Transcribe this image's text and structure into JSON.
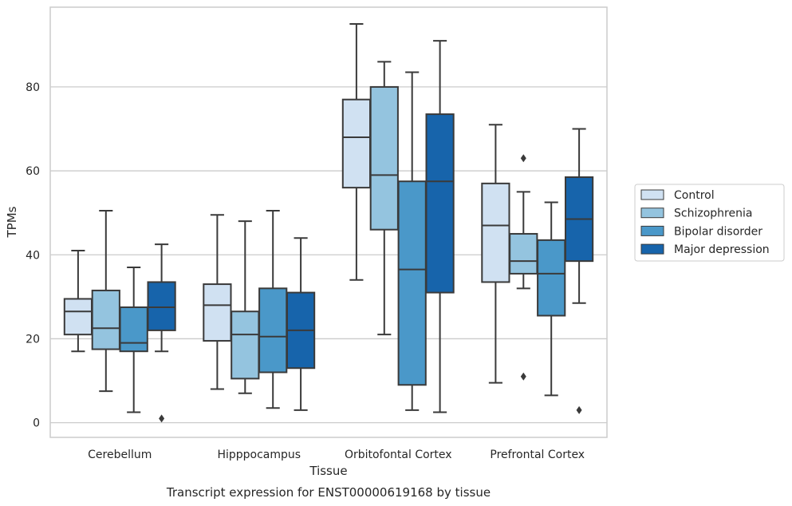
{
  "chart_data": {
    "type": "box",
    "caption": "Transcript expression for ENST00000619168 by tissue",
    "xlabel": "Tissue",
    "ylabel": "TPMs",
    "ylim": [
      -3.5,
      99
    ],
    "yticks": [
      0,
      20,
      40,
      60,
      80
    ],
    "grid": true,
    "legend_position": "right",
    "categories": [
      "Cerebellum",
      "Hipppocampus",
      "Orbitofontal Cortex",
      "Prefrontal Cortex"
    ],
    "series": [
      {
        "name": "Control",
        "color": "#d0e1f2",
        "boxes": [
          {
            "whislo": 17,
            "q1": 21,
            "med": 26.5,
            "q3": 29.5,
            "whishi": 41,
            "fliers": []
          },
          {
            "whislo": 8,
            "q1": 19.5,
            "med": 28,
            "q3": 33,
            "whishi": 49.5,
            "fliers": []
          },
          {
            "whislo": 34,
            "q1": 56,
            "med": 68,
            "q3": 77,
            "whishi": 95,
            "fliers": []
          },
          {
            "whislo": 9.5,
            "q1": 33.5,
            "med": 47,
            "q3": 57,
            "whishi": 71,
            "fliers": []
          }
        ]
      },
      {
        "name": "Schizophrenia",
        "color": "#94c4df",
        "boxes": [
          {
            "whislo": 7.5,
            "q1": 17.5,
            "med": 22.5,
            "q3": 31.5,
            "whishi": 50.5,
            "fliers": []
          },
          {
            "whislo": 7,
            "q1": 10.5,
            "med": 21,
            "q3": 26.5,
            "whishi": 48,
            "fliers": []
          },
          {
            "whislo": 21,
            "q1": 46,
            "med": 59,
            "q3": 80,
            "whishi": 86,
            "fliers": []
          },
          {
            "whislo": 32,
            "q1": 35.5,
            "med": 38.5,
            "q3": 45,
            "whishi": 55,
            "fliers": [
              63,
              11
            ]
          }
        ]
      },
      {
        "name": "Bipolar disorder",
        "color": "#4a98c9",
        "boxes": [
          {
            "whislo": 2.5,
            "q1": 17,
            "med": 19,
            "q3": 27.5,
            "whishi": 37,
            "fliers": []
          },
          {
            "whislo": 3.5,
            "q1": 12,
            "med": 20.5,
            "q3": 32,
            "whishi": 50.5,
            "fliers": []
          },
          {
            "whislo": 3,
            "q1": 9,
            "med": 36.5,
            "q3": 57.5,
            "whishi": 83.5,
            "fliers": []
          },
          {
            "whislo": 6.5,
            "q1": 25.5,
            "med": 35.5,
            "q3": 43.5,
            "whishi": 52.5,
            "fliers": []
          }
        ]
      },
      {
        "name": "Major depression",
        "color": "#1764ab",
        "boxes": [
          {
            "whislo": 17,
            "q1": 22,
            "med": 27.5,
            "q3": 33.5,
            "whishi": 42.5,
            "fliers": [
              1
            ]
          },
          {
            "whislo": 3,
            "q1": 13,
            "med": 22,
            "q3": 31,
            "whishi": 44,
            "fliers": []
          },
          {
            "whislo": 2.5,
            "q1": 31,
            "med": 57.5,
            "q3": 73.5,
            "whishi": 91,
            "fliers": []
          },
          {
            "whislo": 28.5,
            "q1": 38.5,
            "med": 48.5,
            "q3": 58.5,
            "whishi": 70,
            "fliers": [
              3
            ]
          }
        ]
      }
    ]
  }
}
